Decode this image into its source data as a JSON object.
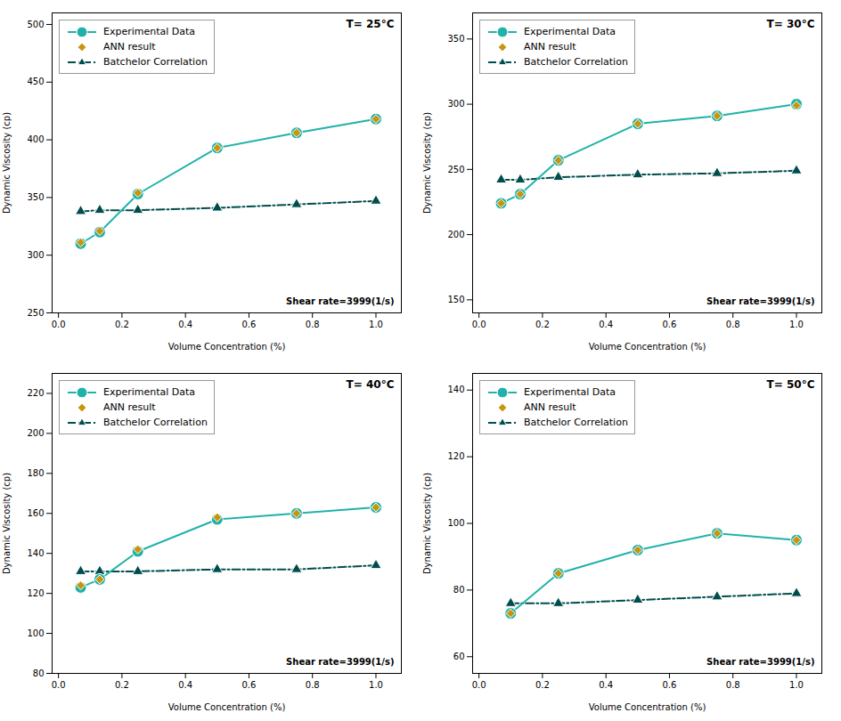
{
  "chart_data": [
    {
      "type": "line",
      "xlabel": "Volume Concentration (%)",
      "ylabel": "Dynamic Viscosity (cp)",
      "annotations": [
        "T= 25°C",
        "Shear rate=3999(1/s)"
      ],
      "xlim": [
        -0.02,
        1.08
      ],
      "xticks": [
        {
          "value": 0,
          "label": "0.0"
        },
        0.2,
        0.4,
        0.6,
        0.8,
        {
          "value": 1.0,
          "label": "1.0"
        }
      ],
      "ylim": [
        250,
        510
      ],
      "yticks": [
        250,
        300,
        350,
        400,
        450,
        500
      ],
      "grid": false,
      "legend": "upper left",
      "x": [
        0.07,
        0.13,
        0.25,
        0.5,
        0.75,
        1.0
      ],
      "series": [
        {
          "name": "Experimental Data",
          "type": "line",
          "color": "#20b2aa",
          "marker": "circle",
          "line_style": "solid",
          "values": [
            310,
            320,
            353,
            393,
            406,
            418
          ]
        },
        {
          "name": "ANN result",
          "type": "scatter",
          "color": "#c8960c",
          "marker": "diamond",
          "line_style": "none",
          "values": [
            311,
            321,
            354,
            393,
            406,
            418
          ]
        },
        {
          "name": "Batchelor Correlation",
          "type": "line",
          "color": "#004d4d",
          "marker": "triangle",
          "line_style": "dashdot",
          "values": [
            338,
            339,
            339,
            341,
            344,
            347
          ]
        }
      ]
    },
    {
      "type": "line",
      "xlabel": "Volume Concentration (%)",
      "ylabel": "Dynamic Viscosity (cp)",
      "annotations": [
        "T= 30°C",
        "Shear rate=3999(1/s)"
      ],
      "xlim": [
        -0.02,
        1.08
      ],
      "xticks": [
        {
          "value": 0,
          "label": "0.0"
        },
        0.2,
        0.4,
        0.6,
        0.8,
        {
          "value": 1.0,
          "label": "1.0"
        }
      ],
      "ylim": [
        140,
        370
      ],
      "yticks": [
        150,
        200,
        250,
        300,
        350
      ],
      "grid": false,
      "legend": "upper left",
      "x": [
        0.07,
        0.13,
        0.25,
        0.5,
        0.75,
        1.0
      ],
      "series": [
        {
          "name": "Experimental Data",
          "type": "line",
          "color": "#20b2aa",
          "marker": "circle",
          "line_style": "solid",
          "values": [
            224,
            231,
            257,
            285,
            291,
            300
          ]
        },
        {
          "name": "ANN result",
          "type": "scatter",
          "color": "#c8960c",
          "marker": "diamond",
          "line_style": "none",
          "values": [
            224,
            231,
            257,
            285,
            291,
            299
          ]
        },
        {
          "name": "Batchelor Correlation",
          "type": "line",
          "color": "#004d4d",
          "marker": "triangle",
          "line_style": "dashdot",
          "values": [
            242,
            242,
            244,
            246,
            247,
            249
          ]
        }
      ]
    },
    {
      "type": "line",
      "xlabel": "Volume Concentration (%)",
      "ylabel": "Dynamic Viscosity (cp)",
      "annotations": [
        "T= 40°C",
        "Shear rate=3999(1/s)"
      ],
      "xlim": [
        -0.02,
        1.08
      ],
      "xticks": [
        {
          "value": 0,
          "label": "0.0"
        },
        0.2,
        0.4,
        0.6,
        0.8,
        {
          "value": 1.0,
          "label": "1.0"
        }
      ],
      "ylim": [
        80,
        230
      ],
      "yticks": [
        80,
        100,
        120,
        140,
        160,
        180,
        200,
        220
      ],
      "grid": false,
      "legend": "upper left",
      "x": [
        0.07,
        0.13,
        0.25,
        0.5,
        0.75,
        1.0
      ],
      "series": [
        {
          "name": "Experimental Data",
          "type": "line",
          "color": "#20b2aa",
          "marker": "circle",
          "line_style": "solid",
          "values": [
            123,
            127,
            141,
            157,
            160,
            163
          ]
        },
        {
          "name": "ANN result",
          "type": "scatter",
          "color": "#c8960c",
          "marker": "diamond",
          "line_style": "none",
          "values": [
            124,
            127,
            142,
            158,
            160,
            163
          ]
        },
        {
          "name": "Batchelor Correlation",
          "type": "line",
          "color": "#004d4d",
          "marker": "triangle",
          "line_style": "dashdot",
          "values": [
            131,
            131,
            131,
            132,
            132,
            134
          ]
        }
      ]
    },
    {
      "type": "line",
      "xlabel": "Volume Concentration (%)",
      "ylabel": "Dynamic Viscosity (cp)",
      "annotations": [
        "T= 50°C",
        "Shear rate=3999(1/s)"
      ],
      "xlim": [
        -0.02,
        1.08
      ],
      "xticks": [
        {
          "value": 0,
          "label": "0.0"
        },
        0.2,
        0.4,
        0.6,
        0.8,
        {
          "value": 1.0,
          "label": "1.0"
        }
      ],
      "ylim": [
        55,
        145
      ],
      "yticks": [
        60,
        80,
        100,
        120,
        140
      ],
      "grid": false,
      "legend": "upper left",
      "x": [
        0.1,
        0.25,
        0.5,
        0.75,
        1.0
      ],
      "series": [
        {
          "name": "Experimental Data",
          "type": "line",
          "color": "#20b2aa",
          "marker": "circle",
          "line_style": "solid",
          "values": [
            73,
            85,
            92,
            97,
            95
          ]
        },
        {
          "name": "ANN result",
          "type": "scatter",
          "color": "#c8960c",
          "marker": "diamond",
          "line_style": "none",
          "values": [
            73,
            85,
            92,
            97,
            95
          ]
        },
        {
          "name": "Batchelor Correlation",
          "type": "line",
          "color": "#004d4d",
          "marker": "triangle",
          "line_style": "dashdot",
          "values": [
            76,
            76,
            77,
            78,
            79
          ]
        }
      ]
    }
  ]
}
